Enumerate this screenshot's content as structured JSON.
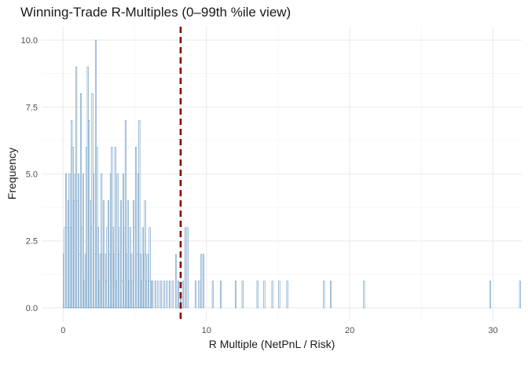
{
  "chart_data": {
    "type": "bar",
    "title": "Winning-Trade R-Multiples (0–99th %ile view)",
    "xlabel": "R Multiple (NetPnL / Risk)",
    "ylabel": "Frequency",
    "xlim": [
      -1.5,
      32
    ],
    "ylim": [
      -0.5,
      10.5
    ],
    "x_ticks": [
      0,
      10,
      20,
      30
    ],
    "x_tick_labels": [
      "0",
      "10",
      "20",
      "30"
    ],
    "y_ticks": [
      0,
      2.5,
      5,
      7.5,
      10
    ],
    "y_tick_labels": [
      "0.0",
      "2.5",
      "5.0",
      "7.5",
      "10.0"
    ],
    "grid": true,
    "bin_width": 0.08,
    "bar_color": "#4682B4",
    "reference_line": {
      "x": 8.2,
      "color": "#8B0000",
      "style": "dashed"
    },
    "bins": [
      [
        0.0,
        2
      ],
      [
        0.08,
        3
      ],
      [
        0.16,
        5
      ],
      [
        0.24,
        3
      ],
      [
        0.32,
        4
      ],
      [
        0.4,
        5
      ],
      [
        0.48,
        3
      ],
      [
        0.56,
        7
      ],
      [
        0.64,
        6
      ],
      [
        0.72,
        4
      ],
      [
        0.8,
        5
      ],
      [
        0.88,
        9
      ],
      [
        0.96,
        4
      ],
      [
        1.04,
        5
      ],
      [
        1.12,
        2
      ],
      [
        1.2,
        8
      ],
      [
        1.28,
        3
      ],
      [
        1.36,
        5
      ],
      [
        1.44,
        1
      ],
      [
        1.52,
        2
      ],
      [
        1.6,
        6
      ],
      [
        1.68,
        9
      ],
      [
        1.76,
        7
      ],
      [
        1.84,
        4
      ],
      [
        1.92,
        3
      ],
      [
        2.0,
        8
      ],
      [
        2.08,
        5
      ],
      [
        2.16,
        2
      ],
      [
        2.24,
        10
      ],
      [
        2.32,
        6
      ],
      [
        2.4,
        3
      ],
      [
        2.48,
        1
      ],
      [
        2.56,
        2
      ],
      [
        2.64,
        5
      ],
      [
        2.72,
        2
      ],
      [
        2.8,
        4
      ],
      [
        2.88,
        2
      ],
      [
        2.96,
        1
      ],
      [
        3.04,
        3
      ],
      [
        3.12,
        4
      ],
      [
        3.2,
        2
      ],
      [
        3.28,
        5
      ],
      [
        3.36,
        6
      ],
      [
        3.44,
        3
      ],
      [
        3.52,
        2
      ],
      [
        3.6,
        6
      ],
      [
        3.68,
        1
      ],
      [
        3.76,
        5
      ],
      [
        3.84,
        2
      ],
      [
        3.92,
        3
      ],
      [
        4.0,
        4
      ],
      [
        4.08,
        1
      ],
      [
        4.16,
        5
      ],
      [
        4.24,
        3
      ],
      [
        4.32,
        7
      ],
      [
        4.4,
        2
      ],
      [
        4.48,
        4
      ],
      [
        4.56,
        1
      ],
      [
        4.64,
        3
      ],
      [
        4.72,
        2
      ],
      [
        4.8,
        1
      ],
      [
        4.88,
        4
      ],
      [
        4.96,
        3
      ],
      [
        5.04,
        6
      ],
      [
        5.12,
        2
      ],
      [
        5.2,
        5
      ],
      [
        5.28,
        7
      ],
      [
        5.36,
        2
      ],
      [
        5.44,
        1
      ],
      [
        5.52,
        3
      ],
      [
        5.6,
        2
      ],
      [
        5.68,
        4
      ],
      [
        5.76,
        1
      ],
      [
        5.84,
        2
      ],
      [
        5.92,
        1
      ],
      [
        6.0,
        3
      ],
      [
        6.08,
        1
      ],
      [
        6.2,
        1
      ],
      [
        6.4,
        1
      ],
      [
        6.6,
        1
      ],
      [
        6.8,
        1
      ],
      [
        7.0,
        1
      ],
      [
        7.2,
        1
      ],
      [
        7.4,
        1
      ],
      [
        7.6,
        1
      ],
      [
        7.84,
        2
      ],
      [
        8.0,
        1
      ],
      [
        8.16,
        0.5
      ],
      [
        8.32,
        1
      ],
      [
        8.48,
        3
      ],
      [
        8.64,
        3
      ],
      [
        9.2,
        1
      ],
      [
        9.44,
        1
      ],
      [
        9.6,
        2
      ],
      [
        9.76,
        2
      ],
      [
        10.4,
        1
      ],
      [
        10.96,
        1
      ],
      [
        12.0,
        1
      ],
      [
        12.48,
        1
      ],
      [
        13.52,
        1
      ],
      [
        14.0,
        1
      ],
      [
        14.56,
        1
      ],
      [
        15.04,
        1
      ],
      [
        15.6,
        1
      ],
      [
        18.16,
        1
      ],
      [
        18.64,
        1
      ],
      [
        20.96,
        1
      ],
      [
        29.76,
        1
      ],
      [
        31.84,
        1
      ]
    ]
  }
}
